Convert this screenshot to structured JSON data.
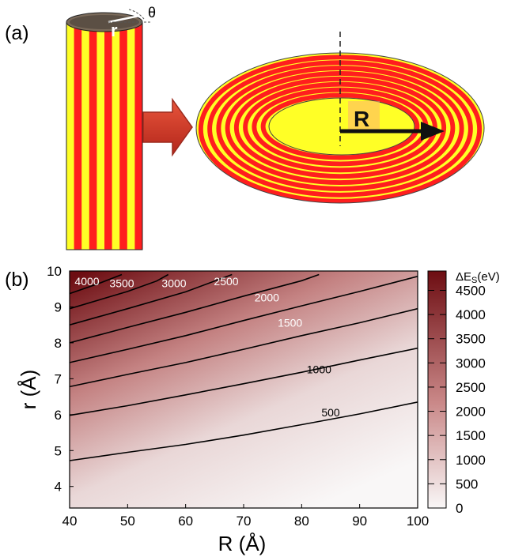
{
  "panels": {
    "a": "(a)",
    "b": "(b)"
  },
  "panel_a": {
    "cylinder_radius_label": "r",
    "cylinder_angle_label": "θ",
    "torus_radius_label": "R",
    "stripe_colors": [
      "#ff1e1e",
      "#ffff26"
    ]
  },
  "chart_data": {
    "type": "heatmap",
    "title": "",
    "xlabel": "R (Å)",
    "ylabel": "r (Å)",
    "xlim": [
      40,
      100
    ],
    "ylim": [
      3.4,
      10
    ],
    "x_ticks": [
      "40",
      "50",
      "60",
      "70",
      "80",
      "90",
      "100"
    ],
    "y_ticks": [
      "4",
      "5",
      "6",
      "7",
      "8",
      "9",
      "10"
    ],
    "colorbar": {
      "title": "ΔE",
      "title_sub": "S",
      "title_unit": "(eV)",
      "range": [
        0,
        4900
      ],
      "ticks": [
        "0",
        "500",
        "1000",
        "1500",
        "2000",
        "2500",
        "3000",
        "3500",
        "4000",
        "4500"
      ],
      "color_low": "#f9f7f7",
      "color_high": "#6d0d12"
    },
    "contours": [
      {
        "level": 500,
        "label": "500",
        "points": [
          [
            40,
            4.72
          ],
          [
            50,
            4.95
          ],
          [
            60,
            5.17
          ],
          [
            70,
            5.43
          ],
          [
            80,
            5.72
          ],
          [
            90,
            6.02
          ],
          [
            100,
            6.35
          ]
        ]
      },
      {
        "level": 1000,
        "label": "1000",
        "points": [
          [
            40,
            5.98
          ],
          [
            50,
            6.25
          ],
          [
            60,
            6.55
          ],
          [
            70,
            6.86
          ],
          [
            80,
            7.18
          ],
          [
            90,
            7.52
          ],
          [
            100,
            7.85
          ]
        ]
      },
      {
        "level": 1500,
        "label": "1500",
        "points": [
          [
            40,
            6.78
          ],
          [
            50,
            7.12
          ],
          [
            60,
            7.45
          ],
          [
            70,
            7.82
          ],
          [
            80,
            8.2
          ],
          [
            90,
            8.56
          ],
          [
            100,
            8.95
          ]
        ]
      },
      {
        "level": 2000,
        "label": "2000",
        "points": [
          [
            40,
            7.45
          ],
          [
            50,
            7.82
          ],
          [
            60,
            8.2
          ],
          [
            70,
            8.62
          ],
          [
            80,
            9.03
          ],
          [
            90,
            9.43
          ],
          [
            100,
            9.85
          ]
        ]
      },
      {
        "level": 2500,
        "label": "2500",
        "points": [
          [
            40,
            8.0
          ],
          [
            50,
            8.43
          ],
          [
            60,
            8.85
          ],
          [
            70,
            9.3
          ],
          [
            80,
            9.73
          ],
          [
            83,
            9.9
          ]
        ]
      },
      {
        "level": 3000,
        "label": "3000",
        "points": [
          [
            40,
            8.5
          ],
          [
            50,
            8.95
          ],
          [
            60,
            9.42
          ],
          [
            68,
            9.9
          ]
        ]
      },
      {
        "level": 3500,
        "label": "3500",
        "points": [
          [
            40,
            8.95
          ],
          [
            50,
            9.43
          ],
          [
            55,
            9.72
          ],
          [
            57,
            9.9
          ]
        ]
      },
      {
        "level": 4000,
        "label": "4000",
        "points": [
          [
            40,
            9.37
          ],
          [
            45,
            9.65
          ],
          [
            49,
            9.9
          ]
        ]
      }
    ]
  }
}
